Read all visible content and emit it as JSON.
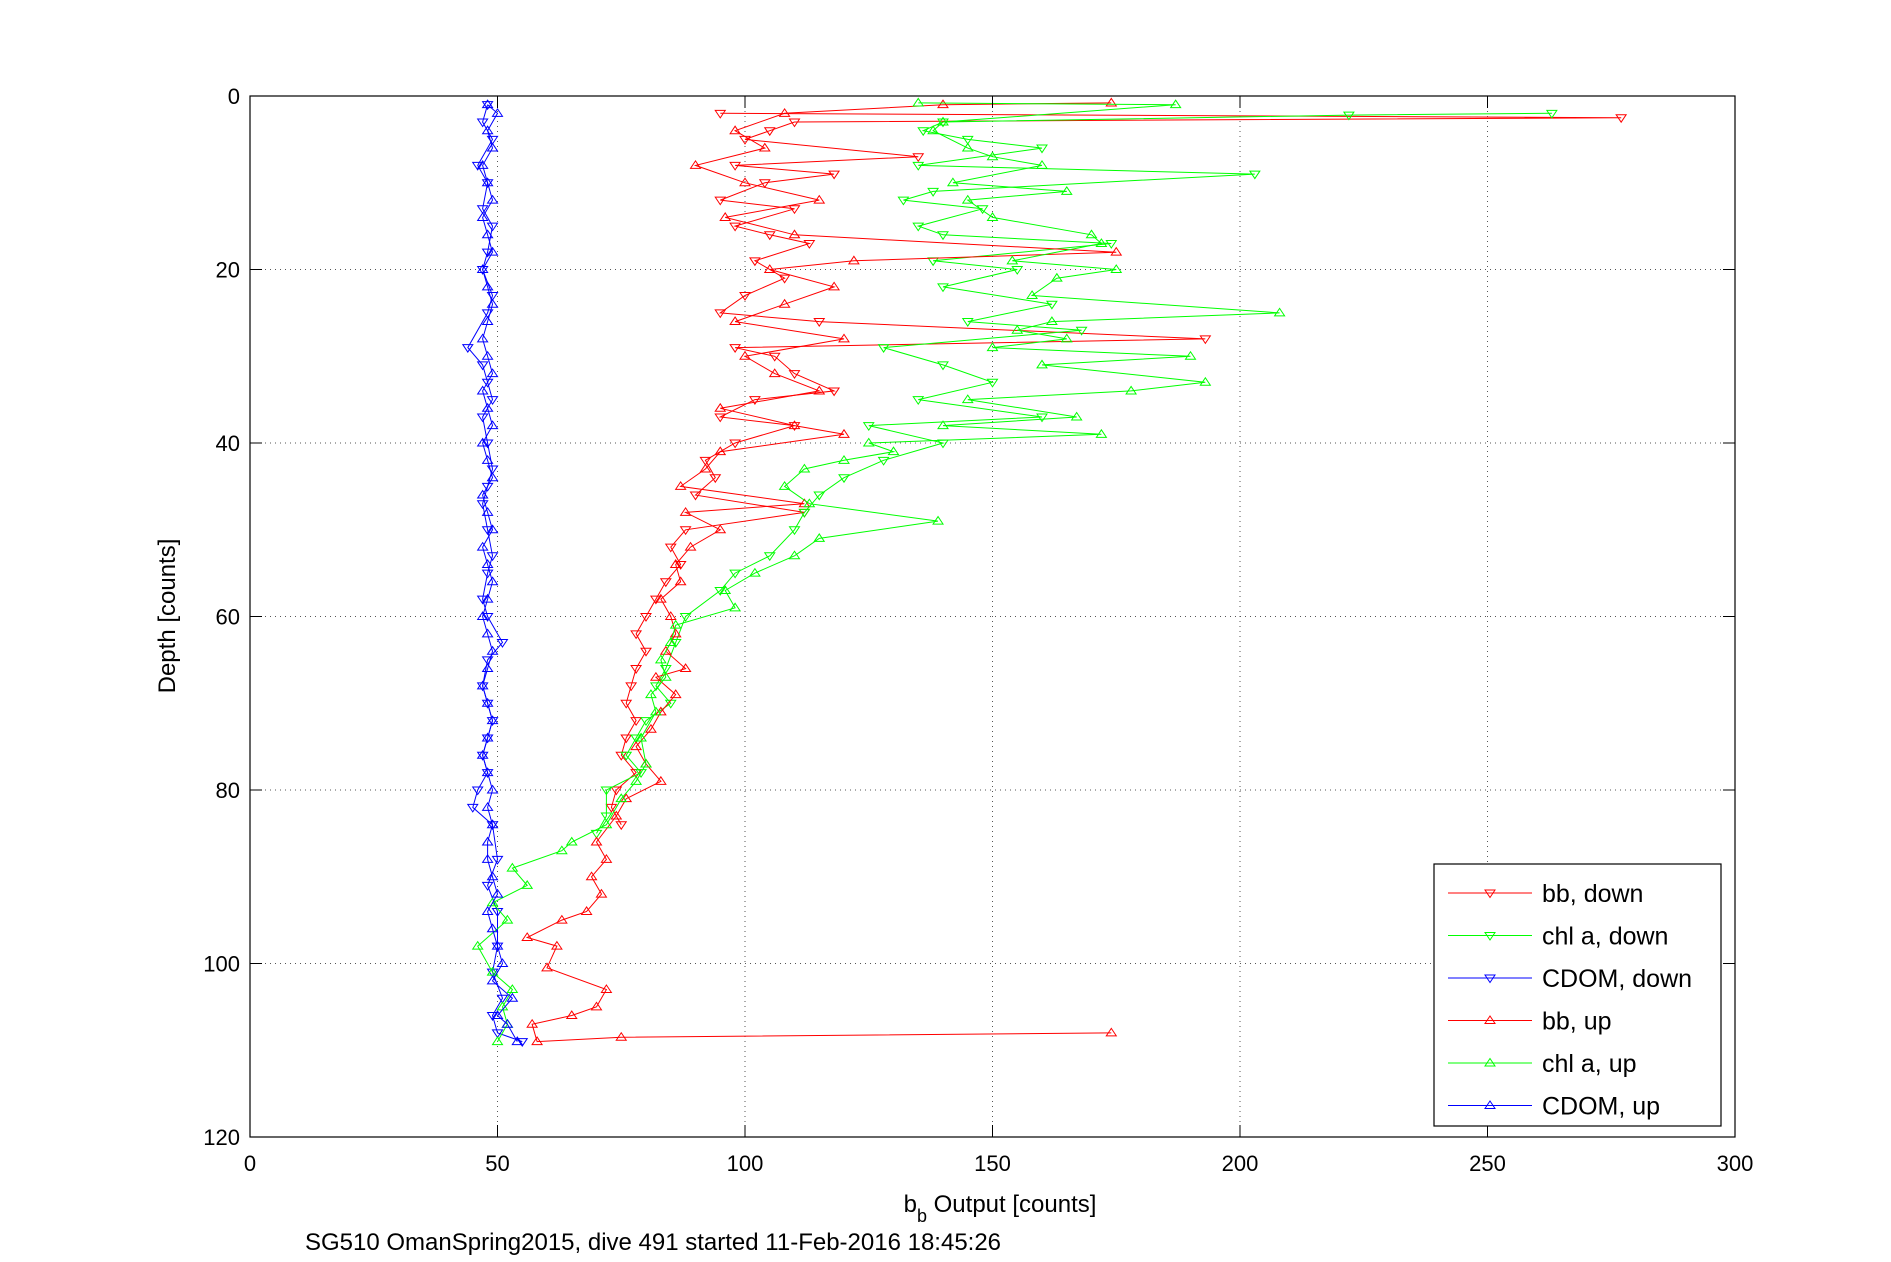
{
  "chart_data": {
    "type": "scatter",
    "xlabel_main": "b",
    "xlabel_sub": "b",
    "xlabel_rest": " Output [counts]",
    "ylabel": "Depth [counts]",
    "caption": "SG510 OmanSpring2015, dive 491 started 11-Feb-2016 18:45:26",
    "xlim": [
      0,
      300
    ],
    "ylim": [
      0,
      120
    ],
    "y_reversed": true,
    "grid": true,
    "legend_placement": "bottom-right",
    "xticks": [
      0,
      50,
      100,
      150,
      200,
      250,
      300
    ],
    "yticks": [
      0,
      20,
      40,
      60,
      80,
      100,
      120
    ],
    "series": [
      {
        "name": "bb, down",
        "color": "#ff0000",
        "marker": "triangle-down",
        "points": [
          [
            95,
            2
          ],
          [
            277,
            2.5
          ],
          [
            110,
            3
          ],
          [
            105,
            4
          ],
          [
            100,
            5
          ],
          [
            135,
            7
          ],
          [
            98,
            8
          ],
          [
            118,
            9
          ],
          [
            104,
            10
          ],
          [
            95,
            12
          ],
          [
            110,
            13
          ],
          [
            98,
            15
          ],
          [
            105,
            16
          ],
          [
            113,
            17
          ],
          [
            102,
            19
          ],
          [
            108,
            21
          ],
          [
            100,
            23
          ],
          [
            95,
            25
          ],
          [
            115,
            26
          ],
          [
            193,
            28
          ],
          [
            98,
            29
          ],
          [
            106,
            30
          ],
          [
            110,
            32
          ],
          [
            118,
            34
          ],
          [
            102,
            35
          ],
          [
            95,
            37
          ],
          [
            110,
            38
          ],
          [
            98,
            40
          ],
          [
            92,
            42
          ],
          [
            94,
            44
          ],
          [
            90,
            46
          ],
          [
            112,
            48
          ],
          [
            88,
            50
          ],
          [
            85,
            52
          ],
          [
            87,
            54
          ],
          [
            84,
            56
          ],
          [
            82,
            58
          ],
          [
            80,
            60
          ],
          [
            78,
            62
          ],
          [
            80,
            64
          ],
          [
            78,
            66
          ],
          [
            77,
            68
          ],
          [
            76,
            70
          ],
          [
            78,
            72
          ],
          [
            76,
            74
          ],
          [
            75,
            76
          ],
          [
            78,
            78
          ],
          [
            74,
            80
          ],
          [
            73,
            82
          ],
          [
            75,
            84
          ]
        ]
      },
      {
        "name": "chl a, down",
        "color": "#00ff00",
        "marker": "triangle-down",
        "points": [
          [
            263,
            2
          ],
          [
            222,
            2.2
          ],
          [
            140,
            3
          ],
          [
            136,
            4
          ],
          [
            145,
            5
          ],
          [
            160,
            6
          ],
          [
            135,
            8
          ],
          [
            203,
            9
          ],
          [
            138,
            11
          ],
          [
            132,
            12
          ],
          [
            148,
            13
          ],
          [
            135,
            15
          ],
          [
            140,
            16
          ],
          [
            174,
            17
          ],
          [
            138,
            19
          ],
          [
            155,
            20
          ],
          [
            140,
            22
          ],
          [
            162,
            24
          ],
          [
            145,
            26
          ],
          [
            168,
            27
          ],
          [
            128,
            29
          ],
          [
            140,
            31
          ],
          [
            150,
            33
          ],
          [
            135,
            35
          ],
          [
            160,
            37
          ],
          [
            125,
            38
          ],
          [
            140,
            40
          ],
          [
            128,
            42
          ],
          [
            120,
            44
          ],
          [
            115,
            46
          ],
          [
            112,
            48
          ],
          [
            110,
            50
          ],
          [
            105,
            53
          ],
          [
            98,
            55
          ],
          [
            95,
            57
          ],
          [
            88,
            60
          ],
          [
            86,
            63
          ],
          [
            84,
            66
          ],
          [
            82,
            68
          ],
          [
            85,
            70
          ],
          [
            80,
            72
          ],
          [
            78,
            74
          ],
          [
            76,
            76
          ],
          [
            79,
            78
          ],
          [
            72,
            80
          ],
          [
            72,
            83
          ],
          [
            70,
            85
          ]
        ]
      },
      {
        "name": "CDOM, down",
        "color": "#0000ff",
        "marker": "triangle-down",
        "points": [
          [
            48,
            1
          ],
          [
            47,
            3
          ],
          [
            49,
            5
          ],
          [
            46,
            8
          ],
          [
            48,
            10
          ],
          [
            47,
            13
          ],
          [
            49,
            15
          ],
          [
            48,
            18
          ],
          [
            47,
            20
          ],
          [
            49,
            23
          ],
          [
            48,
            25
          ],
          [
            44,
            29
          ],
          [
            47,
            31
          ],
          [
            48,
            33
          ],
          [
            49,
            35
          ],
          [
            47,
            37
          ],
          [
            48,
            40
          ],
          [
            49,
            43
          ],
          [
            48,
            45
          ],
          [
            47,
            47
          ],
          [
            48,
            50
          ],
          [
            49,
            53
          ],
          [
            48,
            55
          ],
          [
            47,
            58
          ],
          [
            48,
            60
          ],
          [
            51,
            63
          ],
          [
            48,
            65
          ],
          [
            47,
            68
          ],
          [
            48,
            70
          ],
          [
            49,
            72
          ],
          [
            48,
            74
          ],
          [
            47,
            76
          ],
          [
            48,
            78
          ],
          [
            46,
            80
          ],
          [
            45,
            82
          ],
          [
            49,
            84
          ],
          [
            50,
            88
          ],
          [
            48,
            91
          ],
          [
            50,
            94
          ],
          [
            50,
            98
          ],
          [
            49,
            101
          ],
          [
            51,
            104
          ],
          [
            49,
            106
          ],
          [
            50,
            108
          ],
          [
            55,
            109
          ]
        ]
      },
      {
        "name": "bb, up",
        "color": "#ff0000",
        "marker": "triangle-up",
        "points": [
          [
            174,
            108
          ],
          [
            75,
            108.5
          ],
          [
            58,
            109
          ],
          [
            57,
            107
          ],
          [
            65,
            106
          ],
          [
            70,
            105
          ],
          [
            72,
            103
          ],
          [
            60,
            100.5
          ],
          [
            62,
            98
          ],
          [
            56,
            97
          ],
          [
            63,
            95
          ],
          [
            68,
            94
          ],
          [
            71,
            92
          ],
          [
            69,
            90
          ],
          [
            72,
            88
          ],
          [
            70,
            86
          ],
          [
            74,
            83
          ],
          [
            76,
            81
          ],
          [
            83,
            79
          ],
          [
            80,
            77
          ],
          [
            78,
            75
          ],
          [
            81,
            73
          ],
          [
            83,
            71
          ],
          [
            86,
            69
          ],
          [
            82,
            67
          ],
          [
            88,
            66
          ],
          [
            84,
            64
          ],
          [
            86,
            62
          ],
          [
            85,
            60
          ],
          [
            83,
            58
          ],
          [
            87,
            56
          ],
          [
            86,
            54
          ],
          [
            89,
            52
          ],
          [
            95,
            50
          ],
          [
            88,
            48
          ],
          [
            112,
            47
          ],
          [
            87,
            45
          ],
          [
            92,
            43
          ],
          [
            95,
            41
          ],
          [
            120,
            39
          ],
          [
            110,
            38
          ],
          [
            95,
            36
          ],
          [
            115,
            34
          ],
          [
            106,
            32
          ],
          [
            100,
            30
          ],
          [
            120,
            28
          ],
          [
            98,
            26
          ],
          [
            108,
            24
          ],
          [
            118,
            22
          ],
          [
            105,
            20
          ],
          [
            122,
            19
          ],
          [
            175,
            18
          ],
          [
            110,
            16
          ],
          [
            96,
            14
          ],
          [
            115,
            12
          ],
          [
            100,
            10
          ],
          [
            90,
            8
          ],
          [
            104,
            6
          ],
          [
            98,
            4
          ],
          [
            108,
            2
          ],
          [
            140,
            1
          ],
          [
            174,
            0.8
          ]
        ]
      },
      {
        "name": "chl a, up",
        "color": "#00ff00",
        "marker": "triangle-up",
        "points": [
          [
            50,
            109
          ],
          [
            52,
            107
          ],
          [
            51,
            105
          ],
          [
            53,
            103
          ],
          [
            49,
            101
          ],
          [
            46,
            98
          ],
          [
            52,
            95
          ],
          [
            49,
            93
          ],
          [
            56,
            91
          ],
          [
            53,
            89
          ],
          [
            63,
            87
          ],
          [
            65,
            86
          ],
          [
            72,
            84
          ],
          [
            75,
            81
          ],
          [
            78,
            79
          ],
          [
            80,
            77
          ],
          [
            79,
            74
          ],
          [
            82,
            71
          ],
          [
            81,
            69
          ],
          [
            84,
            67
          ],
          [
            83,
            65
          ],
          [
            85,
            63
          ],
          [
            86,
            61
          ],
          [
            98,
            59
          ],
          [
            96,
            57
          ],
          [
            102,
            55
          ],
          [
            110,
            53
          ],
          [
            115,
            51
          ],
          [
            139,
            49
          ],
          [
            113,
            47
          ],
          [
            108,
            45
          ],
          [
            112,
            43
          ],
          [
            120,
            42
          ],
          [
            130,
            41
          ],
          [
            125,
            40
          ],
          [
            172,
            39
          ],
          [
            140,
            38
          ],
          [
            167,
            37
          ],
          [
            145,
            35
          ],
          [
            178,
            34
          ],
          [
            193,
            33
          ],
          [
            160,
            31
          ],
          [
            190,
            30
          ],
          [
            150,
            29
          ],
          [
            165,
            28
          ],
          [
            155,
            27
          ],
          [
            162,
            26
          ],
          [
            208,
            25
          ],
          [
            158,
            23
          ],
          [
            163,
            21
          ],
          [
            175,
            20
          ],
          [
            154,
            19
          ],
          [
            172,
            17
          ],
          [
            170,
            16
          ],
          [
            150,
            14
          ],
          [
            145,
            12
          ],
          [
            165,
            11
          ],
          [
            142,
            10
          ],
          [
            160,
            8
          ],
          [
            150,
            7
          ],
          [
            145,
            6
          ],
          [
            138,
            4
          ],
          [
            140,
            3
          ],
          [
            187,
            1
          ],
          [
            135,
            0.8
          ]
        ]
      },
      {
        "name": "CDOM, up",
        "color": "#0000ff",
        "marker": "triangle-up",
        "points": [
          [
            54,
            109
          ],
          [
            52,
            107
          ],
          [
            50,
            106
          ],
          [
            53,
            104
          ],
          [
            49,
            102
          ],
          [
            51,
            100
          ],
          [
            50,
            98
          ],
          [
            49,
            96
          ],
          [
            48,
            94
          ],
          [
            50,
            92
          ],
          [
            49,
            90
          ],
          [
            48,
            88
          ],
          [
            48,
            86
          ],
          [
            49,
            84
          ],
          [
            48,
            82
          ],
          [
            49,
            80
          ],
          [
            48,
            78
          ],
          [
            47,
            76
          ],
          [
            48,
            74
          ],
          [
            49,
            72
          ],
          [
            48,
            70
          ],
          [
            47,
            68
          ],
          [
            48,
            66
          ],
          [
            49,
            64
          ],
          [
            48,
            62
          ],
          [
            47,
            60
          ],
          [
            48,
            58
          ],
          [
            49,
            56
          ],
          [
            48,
            54
          ],
          [
            47,
            52
          ],
          [
            49,
            50
          ],
          [
            48,
            48
          ],
          [
            47,
            46
          ],
          [
            49,
            44
          ],
          [
            48,
            42
          ],
          [
            47,
            40
          ],
          [
            49,
            38
          ],
          [
            48,
            36
          ],
          [
            47,
            34
          ],
          [
            49,
            32
          ],
          [
            48,
            30
          ],
          [
            47,
            28
          ],
          [
            48,
            26
          ],
          [
            49,
            24
          ],
          [
            48,
            22
          ],
          [
            47,
            20
          ],
          [
            49,
            18
          ],
          [
            48,
            16
          ],
          [
            47,
            14
          ],
          [
            49,
            12
          ],
          [
            48,
            10
          ],
          [
            47,
            8
          ],
          [
            49,
            6
          ],
          [
            48,
            4
          ],
          [
            50,
            2
          ],
          [
            48,
            1
          ]
        ]
      }
    ]
  }
}
